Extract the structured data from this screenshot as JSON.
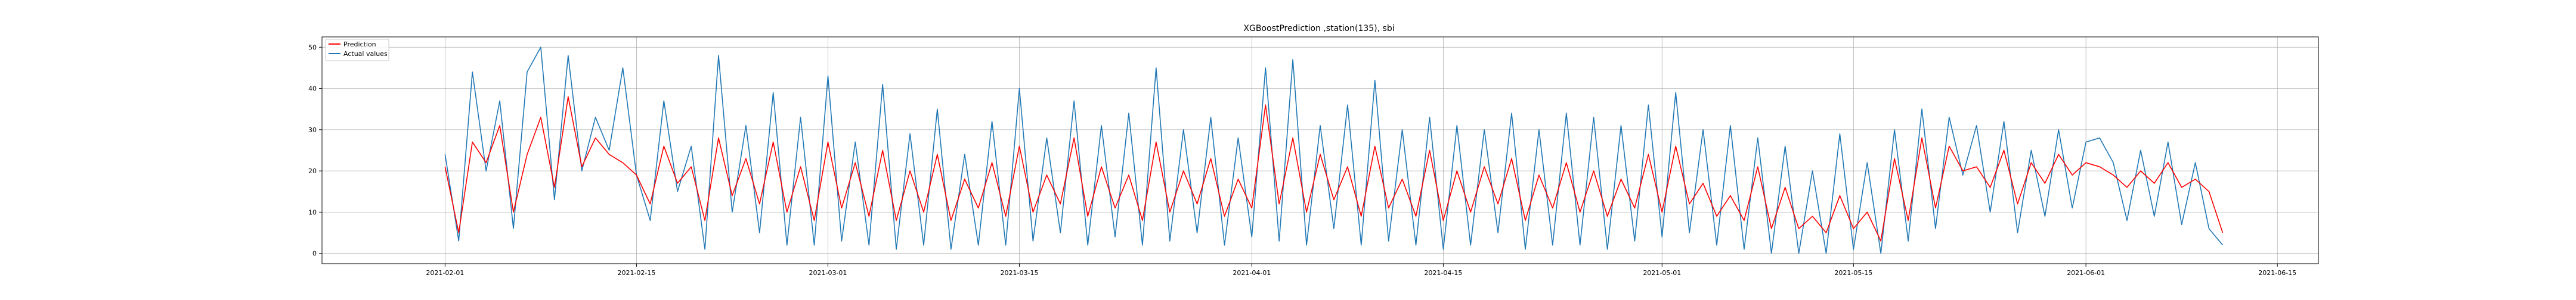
{
  "chart_data": {
    "type": "line",
    "title": "XGBoostPrediction ,station(135), sbi",
    "xlabel": "",
    "ylabel": "",
    "x_range": [
      "2021-01-23",
      "2021-06-18"
    ],
    "ylim": [
      -2.5,
      52.5
    ],
    "x_ticks": [
      "2021-02-01",
      "2021-02-15",
      "2021-03-01",
      "2021-03-15",
      "2021-04-01",
      "2021-04-15",
      "2021-05-01",
      "2021-05-15",
      "2021-06-01",
      "2021-06-15"
    ],
    "y_ticks": [
      0,
      10,
      20,
      30,
      40,
      50
    ],
    "grid": true,
    "legend_position": "upper-left",
    "series": [
      {
        "name": "Prediction",
        "color": "#ff0000",
        "x": [
          "2021-02-01",
          "2021-02-02",
          "2021-02-03",
          "2021-02-04",
          "2021-02-05",
          "2021-02-06",
          "2021-02-07",
          "2021-02-08",
          "2021-02-09",
          "2021-02-10",
          "2021-02-11",
          "2021-02-12",
          "2021-02-13",
          "2021-02-14",
          "2021-02-15",
          "2021-02-16",
          "2021-02-17",
          "2021-02-18",
          "2021-02-19",
          "2021-02-20",
          "2021-02-21",
          "2021-02-22",
          "2021-02-23",
          "2021-02-24",
          "2021-02-25",
          "2021-02-26",
          "2021-02-27",
          "2021-02-28",
          "2021-03-01",
          "2021-03-02",
          "2021-03-03",
          "2021-03-04",
          "2021-03-05",
          "2021-03-06",
          "2021-03-07",
          "2021-03-08",
          "2021-03-09",
          "2021-03-10",
          "2021-03-11",
          "2021-03-12",
          "2021-03-13",
          "2021-03-14",
          "2021-03-15",
          "2021-03-16",
          "2021-03-17",
          "2021-03-18",
          "2021-03-19",
          "2021-03-20",
          "2021-03-21",
          "2021-03-22",
          "2021-03-23",
          "2021-03-24",
          "2021-03-25",
          "2021-03-26",
          "2021-03-27",
          "2021-03-28",
          "2021-03-29",
          "2021-03-30",
          "2021-03-31",
          "2021-04-01",
          "2021-04-02",
          "2021-04-03",
          "2021-04-04",
          "2021-04-05",
          "2021-04-06",
          "2021-04-07",
          "2021-04-08",
          "2021-04-09",
          "2021-04-10",
          "2021-04-11",
          "2021-04-12",
          "2021-04-13",
          "2021-04-14",
          "2021-04-15",
          "2021-04-16",
          "2021-04-17",
          "2021-04-18",
          "2021-04-19",
          "2021-04-20",
          "2021-04-21",
          "2021-04-22",
          "2021-04-23",
          "2021-04-24",
          "2021-04-25",
          "2021-04-26",
          "2021-04-27",
          "2021-04-28",
          "2021-04-29",
          "2021-04-30",
          "2021-05-01",
          "2021-05-02",
          "2021-05-03",
          "2021-05-04",
          "2021-05-05",
          "2021-05-06",
          "2021-05-07",
          "2021-05-08",
          "2021-05-09",
          "2021-05-10",
          "2021-05-11",
          "2021-05-12",
          "2021-05-13",
          "2021-05-14",
          "2021-05-15",
          "2021-05-16",
          "2021-05-17",
          "2021-05-18",
          "2021-05-19",
          "2021-05-20",
          "2021-05-21",
          "2021-05-22",
          "2021-05-23",
          "2021-05-24",
          "2021-05-25",
          "2021-05-26",
          "2021-05-27",
          "2021-05-28",
          "2021-05-29",
          "2021-05-30",
          "2021-05-31",
          "2021-06-01",
          "2021-06-02",
          "2021-06-03",
          "2021-06-04",
          "2021-06-05",
          "2021-06-06",
          "2021-06-07",
          "2021-06-08",
          "2021-06-09",
          "2021-06-10",
          "2021-06-11"
        ],
        "values": [
          21,
          5,
          27,
          22,
          31,
          10,
          24,
          33,
          16,
          38,
          21,
          28,
          24,
          22,
          19,
          12,
          26,
          17,
          21,
          8,
          28,
          14,
          23,
          12,
          27,
          10,
          21,
          8,
          27,
          11,
          22,
          9,
          25,
          8,
          20,
          10,
          24,
          8,
          18,
          11,
          22,
          9,
          26,
          10,
          19,
          12,
          28,
          9,
          21,
          11,
          19,
          8,
          27,
          10,
          20,
          12,
          23,
          9,
          18,
          11,
          36,
          12,
          28,
          10,
          24,
          13,
          21,
          9,
          26,
          11,
          18,
          9,
          25,
          8,
          20,
          10,
          21,
          12,
          23,
          8,
          19,
          11,
          22,
          10,
          20,
          9,
          18,
          11,
          24,
          10,
          26,
          12,
          17,
          9,
          14,
          8,
          21,
          6,
          16,
          6,
          9,
          5,
          14,
          6,
          10,
          3,
          23,
          8,
          28,
          11,
          26,
          20,
          21,
          16,
          25,
          12,
          22,
          17,
          24,
          19,
          22,
          21,
          19,
          16,
          20,
          17,
          22,
          16,
          18,
          15,
          5
        ]
      },
      {
        "name": "Actual values",
        "color": "#1f77b4",
        "x": [
          "2021-02-01",
          "2021-02-02",
          "2021-02-03",
          "2021-02-04",
          "2021-02-05",
          "2021-02-06",
          "2021-02-07",
          "2021-02-08",
          "2021-02-09",
          "2021-02-10",
          "2021-02-11",
          "2021-02-12",
          "2021-02-13",
          "2021-02-14",
          "2021-02-15",
          "2021-02-16",
          "2021-02-17",
          "2021-02-18",
          "2021-02-19",
          "2021-02-20",
          "2021-02-21",
          "2021-02-22",
          "2021-02-23",
          "2021-02-24",
          "2021-02-25",
          "2021-02-26",
          "2021-02-27",
          "2021-02-28",
          "2021-03-01",
          "2021-03-02",
          "2021-03-03",
          "2021-03-04",
          "2021-03-05",
          "2021-03-06",
          "2021-03-07",
          "2021-03-08",
          "2021-03-09",
          "2021-03-10",
          "2021-03-11",
          "2021-03-12",
          "2021-03-13",
          "2021-03-14",
          "2021-03-15",
          "2021-03-16",
          "2021-03-17",
          "2021-03-18",
          "2021-03-19",
          "2021-03-20",
          "2021-03-21",
          "2021-03-22",
          "2021-03-23",
          "2021-03-24",
          "2021-03-25",
          "2021-03-26",
          "2021-03-27",
          "2021-03-28",
          "2021-03-29",
          "2021-03-30",
          "2021-03-31",
          "2021-04-01",
          "2021-04-02",
          "2021-04-03",
          "2021-04-04",
          "2021-04-05",
          "2021-04-06",
          "2021-04-07",
          "2021-04-08",
          "2021-04-09",
          "2021-04-10",
          "2021-04-11",
          "2021-04-12",
          "2021-04-13",
          "2021-04-14",
          "2021-04-15",
          "2021-04-16",
          "2021-04-17",
          "2021-04-18",
          "2021-04-19",
          "2021-04-20",
          "2021-04-21",
          "2021-04-22",
          "2021-04-23",
          "2021-04-24",
          "2021-04-25",
          "2021-04-26",
          "2021-04-27",
          "2021-04-28",
          "2021-04-29",
          "2021-04-30",
          "2021-05-01",
          "2021-05-02",
          "2021-05-03",
          "2021-05-04",
          "2021-05-05",
          "2021-05-06",
          "2021-05-07",
          "2021-05-08",
          "2021-05-09",
          "2021-05-10",
          "2021-05-11",
          "2021-05-12",
          "2021-05-13",
          "2021-05-14",
          "2021-05-15",
          "2021-05-16",
          "2021-05-17",
          "2021-05-18",
          "2021-05-19",
          "2021-05-20",
          "2021-05-21",
          "2021-05-22",
          "2021-05-23",
          "2021-05-24",
          "2021-05-25",
          "2021-05-26",
          "2021-05-27",
          "2021-05-28",
          "2021-05-29",
          "2021-05-30",
          "2021-05-31",
          "2021-06-01",
          "2021-06-02",
          "2021-06-03",
          "2021-06-04",
          "2021-06-05",
          "2021-06-06",
          "2021-06-07",
          "2021-06-08",
          "2021-06-09",
          "2021-06-10",
          "2021-06-11"
        ],
        "values": [
          24,
          3,
          44,
          20,
          37,
          6,
          44,
          50,
          13,
          48,
          20,
          33,
          25,
          45,
          19,
          8,
          37,
          15,
          26,
          1,
          48,
          10,
          31,
          5,
          39,
          2,
          33,
          2,
          43,
          3,
          27,
          2,
          41,
          1,
          29,
          2,
          35,
          1,
          24,
          2,
          32,
          2,
          40,
          3,
          28,
          5,
          37,
          2,
          31,
          4,
          34,
          2,
          45,
          3,
          30,
          5,
          33,
          2,
          28,
          4,
          45,
          3,
          47,
          2,
          31,
          6,
          36,
          2,
          42,
          3,
          30,
          2,
          33,
          1,
          31,
          2,
          30,
          5,
          34,
          1,
          30,
          2,
          34,
          2,
          33,
          1,
          31,
          3,
          36,
          4,
          39,
          5,
          30,
          2,
          31,
          1,
          28,
          0,
          26,
          0,
          20,
          0,
          29,
          1,
          22,
          0,
          30,
          3,
          35,
          6,
          33,
          19,
          31,
          10,
          32,
          5,
          25,
          9,
          30,
          11,
          27,
          28,
          22,
          8,
          25,
          9,
          27,
          7,
          22,
          6,
          2
        ]
      }
    ]
  }
}
